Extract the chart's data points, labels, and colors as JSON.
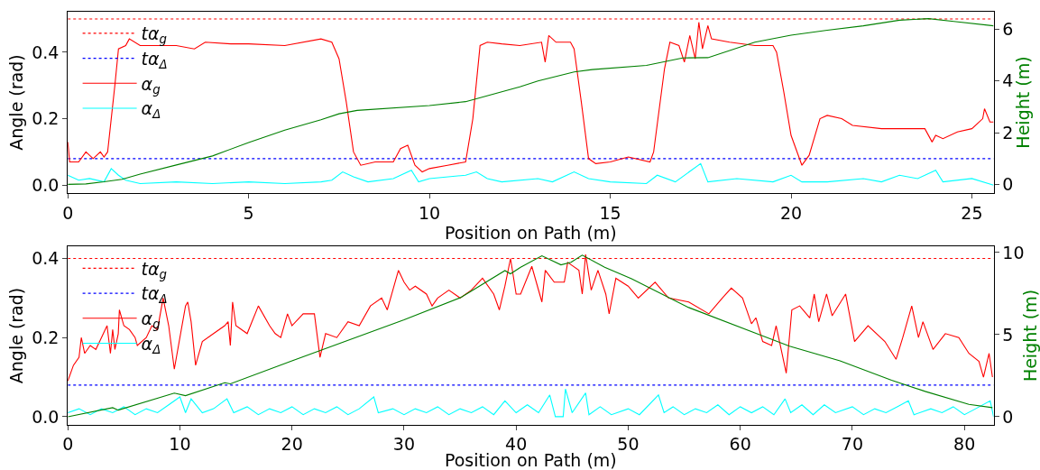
{
  "chart_data": [
    {
      "type": "line",
      "xlabel": "Position on Path (m)",
      "ylabel": "Angle (rad)",
      "y2label": "Height (m)",
      "xlim": [
        0,
        25.6
      ],
      "xticks": [
        0,
        5,
        10,
        15,
        20,
        25
      ],
      "ylim": [
        -0.024,
        0.522
      ],
      "yticks": [
        {
          "value": 0,
          "label": "0.0"
        },
        {
          "value": 0.2,
          "label": "0.2"
        },
        {
          "value": 0.4,
          "label": "0.4"
        }
      ],
      "y2lim": [
        -0.34,
        6.68
      ],
      "y2ticks": [
        0,
        2,
        4,
        6
      ],
      "grid": false,
      "legend": "top left",
      "series": [
        {
          "name": "tα$_{g}$",
          "color": "#ff0000",
          "line_style": "dotted",
          "x": [
            0,
            25.6
          ],
          "values": [
            0.5,
            0.5
          ]
        },
        {
          "name": "tα$_{Δ}$",
          "color": "#0000ff",
          "line_style": "dotted",
          "x": [
            0,
            25.6
          ],
          "values": [
            0.08,
            0.08
          ]
        },
        {
          "name": "α$_{g}$",
          "color": "#ff0000",
          "line_style": "solid",
          "x": [
            0,
            0.05,
            0.3,
            0.5,
            0.7,
            0.9,
            1.0,
            1.1,
            1.2,
            1.3,
            1.4,
            1.6,
            1.7,
            2,
            3,
            3.5,
            3.8,
            4.5,
            5,
            6,
            7,
            7.3,
            7.5,
            7.7,
            7.9,
            8.1,
            8.5,
            9,
            9.2,
            9.4,
            9.6,
            9.8,
            10,
            10.5,
            11,
            11.2,
            11.4,
            11.6,
            12,
            12.5,
            13.1,
            13.2,
            13.3,
            13.5,
            13.9,
            14.0,
            14.2,
            14.4,
            14.6,
            15,
            15.5,
            16.1,
            16.2,
            16.5,
            16.65,
            16.9,
            17.05,
            17.2,
            17.35,
            17.45,
            17.55,
            17.7,
            17.8,
            18.3,
            19,
            19.5,
            19.6,
            19.8,
            20.0,
            20.3,
            20.5,
            20.8,
            21.0,
            21.4,
            21.7,
            22.5,
            23,
            23.7,
            23.9,
            24,
            24.2,
            24.6,
            25,
            25.3,
            25.35,
            25.5,
            25.6
          ],
          "values": [
            0.13,
            0.07,
            0.07,
            0.1,
            0.08,
            0.1,
            0.085,
            0.1,
            0.2,
            0.3,
            0.41,
            0.42,
            0.44,
            0.42,
            0.42,
            0.41,
            0.43,
            0.425,
            0.425,
            0.42,
            0.44,
            0.43,
            0.38,
            0.25,
            0.1,
            0.06,
            0.07,
            0.07,
            0.11,
            0.12,
            0.06,
            0.04,
            0.05,
            0.06,
            0.07,
            0.2,
            0.42,
            0.43,
            0.425,
            0.42,
            0.43,
            0.37,
            0.45,
            0.43,
            0.43,
            0.41,
            0.25,
            0.08,
            0.065,
            0.07,
            0.085,
            0.07,
            0.1,
            0.35,
            0.43,
            0.42,
            0.37,
            0.45,
            0.38,
            0.49,
            0.41,
            0.48,
            0.44,
            0.43,
            0.42,
            0.42,
            0.4,
            0.28,
            0.15,
            0.06,
            0.09,
            0.2,
            0.21,
            0.2,
            0.18,
            0.17,
            0.17,
            0.17,
            0.13,
            0.15,
            0.14,
            0.16,
            0.17,
            0.2,
            0.23,
            0.19,
            0.19
          ]
        },
        {
          "name": "α$_{Δ}$",
          "color": "#00ffff",
          "line_style": "solid",
          "x": [
            0,
            0.3,
            0.6,
            1,
            1.2,
            1.4,
            1.6,
            2,
            3,
            4,
            5,
            6,
            7,
            7.3,
            7.6,
            7.9,
            8.3,
            9,
            9.5,
            9.7,
            10,
            11,
            11.3,
            11.6,
            12,
            13,
            13.4,
            14.0,
            14.4,
            15,
            16,
            16.3,
            16.8,
            17.5,
            17.7,
            18.5,
            19.5,
            20.0,
            20.3,
            21,
            22,
            22.5,
            23,
            23.5,
            24,
            24.2,
            25,
            25.6
          ],
          "values": [
            0.03,
            0.015,
            0.02,
            0.01,
            0.05,
            0.03,
            0.015,
            0.005,
            0.01,
            0.005,
            0.01,
            0.005,
            0.01,
            0.015,
            0.04,
            0.025,
            0.01,
            0.02,
            0.045,
            0.01,
            0.02,
            0.03,
            0.04,
            0.02,
            0.01,
            0.02,
            0.01,
            0.04,
            0.02,
            0.01,
            0.005,
            0.03,
            0.01,
            0.065,
            0.01,
            0.02,
            0.01,
            0.03,
            0.01,
            0.01,
            0.02,
            0.01,
            0.03,
            0.02,
            0.045,
            0.01,
            0.02,
            0.0
          ]
        },
        {
          "color": "#008000",
          "line_style": "solid",
          "axis": "y2",
          "x": [
            0,
            0.5,
            1,
            1.5,
            2,
            3,
            4,
            5,
            6,
            7,
            7.5,
            8,
            10,
            11,
            12.5,
            13,
            14,
            14.5,
            16,
            17,
            17.7,
            19,
            20,
            21,
            22,
            23,
            23.8,
            24.5,
            25.6
          ],
          "values": [
            0,
            0.02,
            0.1,
            0.2,
            0.4,
            0.75,
            1.1,
            1.62,
            2.1,
            2.5,
            2.73,
            2.86,
            3.05,
            3.2,
            3.77,
            4.0,
            4.35,
            4.44,
            4.6,
            4.89,
            4.9,
            5.5,
            5.77,
            5.96,
            6.13,
            6.35,
            6.41,
            6.3,
            6.13
          ]
        }
      ]
    },
    {
      "type": "line",
      "xlabel": "Position on Path (m)",
      "ylabel": "Angle (rad)",
      "y2label": "Height (m)",
      "xlim": [
        0,
        82.6
      ],
      "xticks": [
        0,
        10,
        20,
        30,
        40,
        50,
        60,
        70,
        80
      ],
      "ylim": [
        -0.02,
        0.43
      ],
      "yticks": [
        {
          "value": 0,
          "label": "0.0"
        },
        {
          "value": 0.2,
          "label": "0.2"
        },
        {
          "value": 0.4,
          "label": "0.4"
        }
      ],
      "y2lim": [
        -0.48,
        10.36
      ],
      "y2ticks": [
        0,
        5,
        10
      ],
      "grid": false,
      "legend": "top left",
      "series": [
        {
          "name": "tα$_{g}$",
          "color": "#ff0000",
          "line_style": "dotted",
          "x": [
            0,
            82.6
          ],
          "values": [
            0.4,
            0.4
          ]
        },
        {
          "name": "tα$_{Δ}$",
          "color": "#0000ff",
          "line_style": "dotted",
          "x": [
            0,
            82.6
          ],
          "values": [
            0.08,
            0.08
          ]
        },
        {
          "name": "α$_{g}$",
          "color": "#ff0000",
          "line_style": "solid",
          "x": [
            0,
            0.5,
            1,
            1.2,
            1.5,
            2,
            2.5,
            3,
            3.5,
            3.8,
            4,
            4.2,
            4.5,
            4.6,
            5,
            5.5,
            6,
            6.2,
            7,
            7.5,
            8,
            8.5,
            9,
            9.5,
            10,
            10.5,
            10.7,
            11,
            11.4,
            12,
            13,
            14,
            14.3,
            14.5,
            14.7,
            15,
            16,
            17,
            18,
            18.5,
            19,
            19.6,
            20,
            21,
            22,
            22.5,
            23,
            24,
            25,
            26,
            27,
            28,
            28.5,
            29,
            29.5,
            30,
            30.5,
            31,
            32,
            32.5,
            33,
            34,
            35,
            36,
            37,
            38,
            38.5,
            39,
            39.5,
            40,
            40.4,
            41.4,
            42.3,
            42.6,
            43.4,
            44.3,
            44.6,
            45.6,
            45.9,
            46.2,
            46.7,
            47.3,
            48.0,
            48.3,
            48.9,
            50,
            50.9,
            52.4,
            53.6,
            55.4,
            57.2,
            58.4,
            59.2,
            60.2,
            61,
            61.4,
            62,
            62.8,
            63.2,
            64.1,
            64.6,
            65.3,
            66.2,
            66.6,
            67.0,
            67.7,
            68.2,
            69.4,
            70.2,
            71.4,
            72.9,
            73.9,
            74.5,
            75.3,
            75.9,
            76.3,
            77.2,
            78.3,
            79.5,
            80.4,
            81.3,
            81.7,
            82.2,
            82.5
          ],
          "values": [
            0.09,
            0.13,
            0.15,
            0.2,
            0.16,
            0.18,
            0.17,
            0.2,
            0.23,
            0.16,
            0.22,
            0.17,
            0.21,
            0.27,
            0.23,
            0.22,
            0.2,
            0.18,
            0.2,
            0.23,
            0.22,
            0.3,
            0.23,
            0.12,
            0.2,
            0.28,
            0.29,
            0.24,
            0.13,
            0.19,
            0.21,
            0.23,
            0.24,
            0.18,
            0.29,
            0.23,
            0.21,
            0.28,
            0.23,
            0.21,
            0.2,
            0.26,
            0.23,
            0.26,
            0.26,
            0.15,
            0.21,
            0.2,
            0.24,
            0.23,
            0.28,
            0.3,
            0.27,
            0.32,
            0.37,
            0.34,
            0.32,
            0.33,
            0.31,
            0.28,
            0.3,
            0.32,
            0.3,
            0.32,
            0.35,
            0.31,
            0.27,
            0.33,
            0.4,
            0.31,
            0.31,
            0.38,
            0.29,
            0.37,
            0.34,
            0.34,
            0.39,
            0.37,
            0.31,
            0.41,
            0.32,
            0.37,
            0.31,
            0.26,
            0.35,
            0.33,
            0.3,
            0.34,
            0.3,
            0.29,
            0.26,
            0.3,
            0.325,
            0.3,
            0.235,
            0.25,
            0.19,
            0.18,
            0.23,
            0.11,
            0.27,
            0.28,
            0.25,
            0.31,
            0.24,
            0.31,
            0.255,
            0.31,
            0.19,
            0.23,
            0.19,
            0.145,
            0.2,
            0.28,
            0.2,
            0.24,
            0.17,
            0.21,
            0.2,
            0.16,
            0.14,
            0.1,
            0.16,
            0.1
          ]
        },
        {
          "name": "α$_{Δ}$",
          "color": "#00ffff",
          "line_style": "solid",
          "x": [
            0,
            1,
            2,
            3,
            4,
            5,
            6,
            7,
            8,
            9,
            10,
            10.5,
            11,
            12,
            13,
            14.2,
            14.8,
            16,
            17,
            18,
            19,
            20,
            21,
            22,
            23,
            24,
            25,
            26,
            27.3,
            27.7,
            29,
            30,
            31,
            32,
            33,
            34,
            35,
            36,
            37,
            38,
            39,
            40,
            41,
            42,
            43,
            43.5,
            44.2,
            44.4,
            45,
            46.2,
            46.5,
            47.5,
            48.5,
            50,
            51,
            52.7,
            53.2,
            54,
            55,
            56,
            57,
            58,
            59,
            60,
            61,
            62,
            63,
            64,
            64.5,
            65.5,
            66.5,
            67.5,
            68.5,
            70,
            71,
            72,
            73,
            74,
            75,
            75.5,
            77,
            78,
            79,
            80,
            81,
            82.3,
            82.6
          ],
          "values": [
            0.01,
            0.02,
            0.005,
            0.02,
            0.01,
            0.025,
            0.005,
            0.02,
            0.01,
            0.03,
            0.05,
            0.01,
            0.045,
            0.01,
            0.02,
            0.045,
            0.01,
            0.025,
            0.005,
            0.02,
            0.01,
            0.025,
            0.005,
            0.02,
            0.01,
            0.025,
            0.005,
            0.02,
            0.05,
            0.01,
            0.02,
            0.005,
            0.02,
            0.01,
            0.025,
            0.005,
            0.02,
            0.01,
            0.025,
            0.005,
            0.04,
            0.01,
            0.03,
            0.01,
            0.055,
            0.0,
            0.0,
            0.07,
            0.01,
            0.06,
            0.005,
            0.025,
            0.005,
            0.02,
            0.005,
            0.055,
            0.01,
            0.025,
            0.005,
            0.02,
            0.01,
            0.03,
            0.005,
            0.025,
            0.01,
            0.025,
            0.005,
            0.045,
            0.01,
            0.03,
            0.005,
            0.03,
            0.01,
            0.025,
            0.005,
            0.02,
            0.01,
            0.025,
            0.04,
            0.005,
            0.02,
            0.01,
            0.025,
            0.005,
            0.02,
            0.04,
            0.0
          ]
        },
        {
          "color": "#008000",
          "line_style": "solid",
          "axis": "y2",
          "x": [
            0,
            4,
            4.5,
            9.5,
            10.5,
            14,
            14.5,
            20,
            30,
            35,
            39,
            39.5,
            40.4,
            42.3,
            44.0,
            44.9,
            45.9,
            47.9,
            50.3,
            55.4,
            61.4,
            64.4,
            68.9,
            73.5,
            76.5,
            80.4,
            82.5
          ],
          "values": [
            0,
            0.55,
            0.4,
            1.44,
            1.28,
            2.07,
            2.0,
            3.4,
            5.9,
            7.24,
            8.9,
            8.7,
            9.1,
            9.8,
            9.25,
            9.4,
            9.84,
            9.1,
            8.4,
            6.65,
            5.08,
            4.29,
            3.4,
            2.22,
            1.54,
            0.75,
            0.55
          ]
        }
      ]
    }
  ]
}
